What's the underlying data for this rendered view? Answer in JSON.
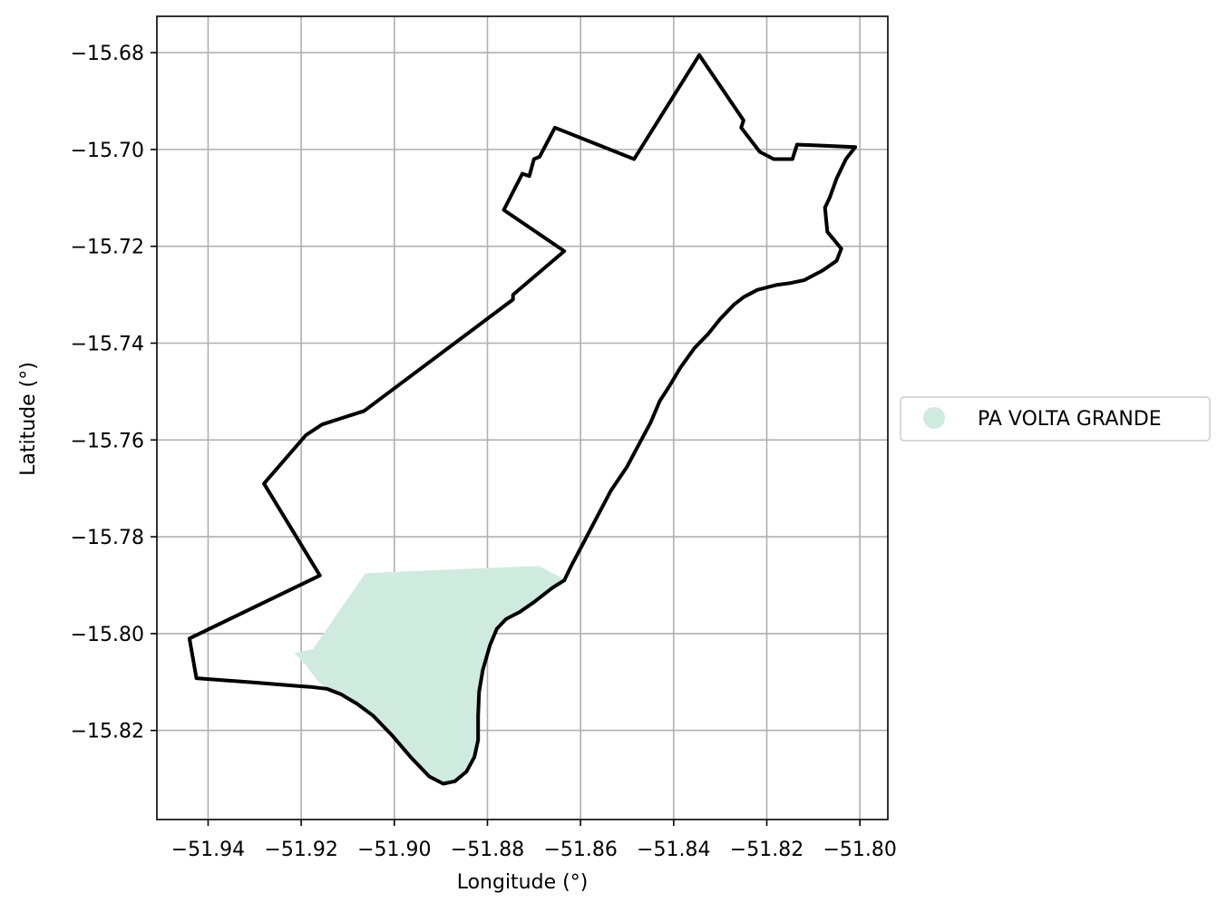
{
  "chart_data": {
    "type": "map",
    "xlabel": "Longitude (°)",
    "ylabel": "Latitude (°)",
    "xlim": [
      -51.951,
      -51.794
    ],
    "ylim": [
      -15.8384,
      -15.6725
    ],
    "grid": true,
    "x_ticks": [
      {
        "value": -51.94,
        "label": "−51.94"
      },
      {
        "value": -51.92,
        "label": "−51.92"
      },
      {
        "value": -51.9,
        "label": "−51.90"
      },
      {
        "value": -51.88,
        "label": "−51.88"
      },
      {
        "value": -51.86,
        "label": "−51.86"
      },
      {
        "value": -51.84,
        "label": "−51.84"
      },
      {
        "value": -51.82,
        "label": "−51.82"
      },
      {
        "value": -51.8,
        "label": "−51.80"
      }
    ],
    "y_ticks": [
      {
        "value": -15.68,
        "label": "−15.68"
      },
      {
        "value": -15.7,
        "label": "−15.70"
      },
      {
        "value": -15.72,
        "label": "−15.72"
      },
      {
        "value": -15.74,
        "label": "−15.74"
      },
      {
        "value": -15.76,
        "label": "−15.76"
      },
      {
        "value": -15.78,
        "label": "−15.78"
      },
      {
        "value": -15.8,
        "label": "−15.80"
      },
      {
        "value": -15.82,
        "label": "−15.82"
      }
    ],
    "legend": {
      "position": "center-right",
      "entries": [
        {
          "label": "PA VOLTA GRANDE",
          "color": "#cfebdf",
          "marker": "circle"
        }
      ]
    },
    "boundary": {
      "color": "#000000",
      "coords": [
        [
          -51.8345,
          -15.6805
        ],
        [
          -51.825,
          -15.694
        ],
        [
          -51.8255,
          -15.6955
        ],
        [
          -51.8215,
          -15.7005
        ],
        [
          -51.8185,
          -15.702
        ],
        [
          -51.8145,
          -15.702
        ],
        [
          -51.8135,
          -15.699
        ],
        [
          -51.801,
          -15.6995
        ],
        [
          -51.803,
          -15.702
        ],
        [
          -51.805,
          -15.706
        ],
        [
          -51.8065,
          -15.71
        ],
        [
          -51.8075,
          -15.712
        ],
        [
          -51.807,
          -15.717
        ],
        [
          -51.804,
          -15.7205
        ],
        [
          -51.805,
          -15.723
        ],
        [
          -51.808,
          -15.725
        ],
        [
          -51.812,
          -15.727
        ],
        [
          -51.815,
          -15.7276
        ],
        [
          -51.818,
          -15.728
        ],
        [
          -51.822,
          -15.729
        ],
        [
          -51.825,
          -15.7305
        ],
        [
          -51.827,
          -15.732
        ],
        [
          -51.83,
          -15.735
        ],
        [
          -51.8325,
          -15.738
        ],
        [
          -51.8355,
          -15.741
        ],
        [
          -51.8385,
          -15.745
        ],
        [
          -51.841,
          -15.749
        ],
        [
          -51.843,
          -15.752
        ],
        [
          -51.845,
          -15.7565
        ],
        [
          -51.8475,
          -15.761
        ],
        [
          -51.85,
          -15.7655
        ],
        [
          -51.8535,
          -15.7705
        ],
        [
          -51.8565,
          -15.776
        ],
        [
          -51.8595,
          -15.7815
        ],
        [
          -51.862,
          -15.786
        ],
        [
          -51.8635,
          -15.789
        ],
        [
          -51.866,
          -15.7905
        ],
        [
          -51.87,
          -15.7935
        ],
        [
          -51.873,
          -15.7955
        ],
        [
          -51.876,
          -15.797
        ],
        [
          -51.878,
          -15.799
        ],
        [
          -51.8795,
          -15.8025
        ],
        [
          -51.881,
          -15.8075
        ],
        [
          -51.8818,
          -15.812
        ],
        [
          -51.882,
          -15.817
        ],
        [
          -51.882,
          -15.822
        ],
        [
          -51.8828,
          -15.8255
        ],
        [
          -51.8845,
          -15.8285
        ],
        [
          -51.887,
          -15.8305
        ],
        [
          -51.8895,
          -15.831
        ],
        [
          -51.8925,
          -15.8295
        ],
        [
          -51.8965,
          -15.8255
        ],
        [
          -51.9005,
          -15.821
        ],
        [
          -51.9045,
          -15.817
        ],
        [
          -51.908,
          -15.8145
        ],
        [
          -51.9115,
          -15.8125
        ],
        [
          -51.9145,
          -15.8114
        ],
        [
          -51.918,
          -15.811
        ],
        [
          -51.921,
          -15.8108
        ],
        [
          -51.93,
          -15.8101
        ],
        [
          -51.9425,
          -15.8092
        ],
        [
          -51.944,
          -15.801
        ],
        [
          -51.916,
          -15.788
        ],
        [
          -51.928,
          -15.769
        ],
        [
          -51.919,
          -15.759
        ],
        [
          -51.9155,
          -15.7568
        ],
        [
          -51.9065,
          -15.754
        ],
        [
          -51.8745,
          -15.731
        ],
        [
          -51.8745,
          -15.73
        ],
        [
          -51.8635,
          -15.721
        ],
        [
          -51.8765,
          -15.7125
        ],
        [
          -51.8725,
          -15.705
        ],
        [
          -51.871,
          -15.7055
        ],
        [
          -51.87,
          -15.702
        ],
        [
          -51.8688,
          -15.7015
        ],
        [
          -51.8655,
          -15.6955
        ],
        [
          -51.8485,
          -15.702
        ],
        [
          -51.8345,
          -15.6805
        ]
      ]
    },
    "fill_area": {
      "color": "#cfebdf",
      "coords": [
        [
          -51.9062,
          -15.7875
        ],
        [
          -51.869,
          -15.786
        ],
        [
          -51.8635,
          -15.7888
        ],
        [
          -51.866,
          -15.7905
        ],
        [
          -51.87,
          -15.7935
        ],
        [
          -51.873,
          -15.7955
        ],
        [
          -51.876,
          -15.797
        ],
        [
          -51.878,
          -15.799
        ],
        [
          -51.8795,
          -15.8025
        ],
        [
          -51.881,
          -15.8075
        ],
        [
          -51.8818,
          -15.812
        ],
        [
          -51.882,
          -15.817
        ],
        [
          -51.882,
          -15.822
        ],
        [
          -51.8828,
          -15.8255
        ],
        [
          -51.8845,
          -15.8285
        ],
        [
          -51.887,
          -15.8305
        ],
        [
          -51.8895,
          -15.831
        ],
        [
          -51.8925,
          -15.8295
        ],
        [
          -51.8965,
          -15.8255
        ],
        [
          -51.9005,
          -15.821
        ],
        [
          -51.9045,
          -15.817
        ],
        [
          -51.908,
          -15.8145
        ],
        [
          -51.9115,
          -15.8125
        ],
        [
          -51.9145,
          -15.8114
        ],
        [
          -51.9163,
          -15.81
        ],
        [
          -51.9175,
          -15.8085
        ],
        [
          -51.919,
          -15.8065
        ],
        [
          -51.9205,
          -15.805
        ],
        [
          -51.9215,
          -15.804
        ],
        [
          -51.9175,
          -15.8032
        ]
      ]
    }
  }
}
